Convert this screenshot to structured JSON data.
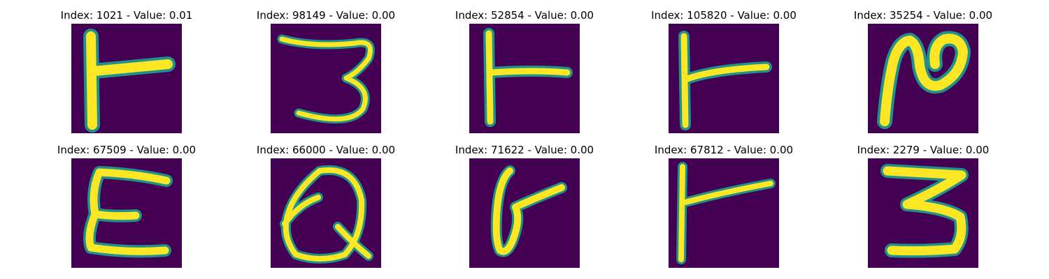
{
  "figure": {
    "background_color": "#440154",
    "stroke_edge_color": "#21918c",
    "stroke_core_color": "#fde725",
    "panels": [
      {
        "title": "Index: 1021 - Value: 0.01",
        "glyph": "T"
      },
      {
        "title": "Index: 98149 - Value: 0.00",
        "glyph": "3"
      },
      {
        "title": "Index: 52854 - Value: 0.00",
        "glyph": "T"
      },
      {
        "title": "Index: 105820 - Value: 0.00",
        "glyph": "T"
      },
      {
        "title": "Index: 35254 - Value: 0.00",
        "glyph": "N"
      },
      {
        "title": "Index: 67509 - Value: 0.00",
        "glyph": "E"
      },
      {
        "title": "Index: 66000 - Value: 0.00",
        "glyph": "Q"
      },
      {
        "title": "Index: 71622 - Value: 0.00",
        "glyph": "b"
      },
      {
        "title": "Index: 67812 - Value: 0.00",
        "glyph": "T"
      },
      {
        "title": "Index: 2279 - Value: 0.00",
        "glyph": "3"
      }
    ]
  }
}
